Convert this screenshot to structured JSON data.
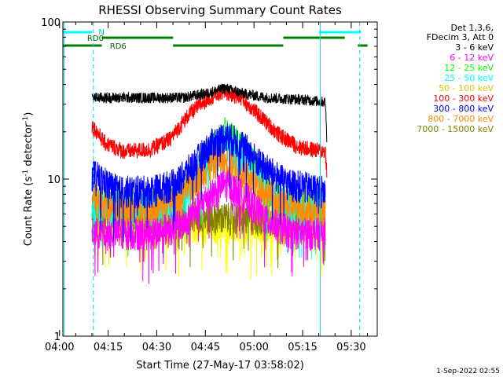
{
  "chart_data": {
    "type": "line",
    "title": "RHESSI Observing Summary Count Rates",
    "xlabel": "Start Time (27-May-17 03:58:02)",
    "ylabel": "Count Rate (s⁻¹ detector⁻¹)",
    "ylabel_parts": {
      "main": "Count Rate (s",
      "sup1": "-1",
      "mid": " detector",
      "sup2": "-1",
      "end": ")"
    },
    "yscale": "log",
    "xlim_minutes": [
      3.0,
      100.0
    ],
    "ylim": [
      1,
      100
    ],
    "x_ticks": [
      {
        "minute": 1.97,
        "label": "04:00"
      },
      {
        "minute": 16.97,
        "label": "04:15"
      },
      {
        "minute": 31.97,
        "label": "04:30"
      },
      {
        "minute": 46.97,
        "label": "04:45"
      },
      {
        "minute": 61.97,
        "label": "05:00"
      },
      {
        "minute": 76.97,
        "label": "05:15"
      },
      {
        "minute": 91.97,
        "label": "05:30"
      }
    ],
    "y_ticks": [
      {
        "value": 1,
        "label": "1"
      },
      {
        "value": 10,
        "label": "10"
      },
      {
        "value": 100,
        "label": "100"
      }
    ],
    "legend_header": [
      "Det 1,3,6,",
      "FDecim 3, Att 0"
    ],
    "series": [
      {
        "name": "3 - 6 keV",
        "color": "#000000",
        "points": [
          [
            12,
            33
          ],
          [
            40,
            33
          ],
          [
            47,
            35
          ],
          [
            53,
            38
          ],
          [
            59,
            35
          ],
          [
            66,
            33
          ],
          [
            78,
            32
          ],
          [
            84,
            31
          ],
          [
            84.5,
            17
          ]
        ]
      },
      {
        "name": "6 - 12 keV",
        "color": "#ff00ff",
        "points": [
          [
            12,
            4.6
          ],
          [
            30,
            4.6
          ],
          [
            40,
            5.2
          ],
          [
            47,
            7.5
          ],
          [
            53,
            9.5
          ],
          [
            59,
            8
          ],
          [
            66,
            5.5
          ],
          [
            74,
            4.6
          ],
          [
            84,
            4.6
          ]
        ]
      },
      {
        "name": "12 - 25 keV",
        "color": "#00ff00",
        "points": [
          [
            12,
            7
          ],
          [
            30,
            7
          ],
          [
            40,
            8
          ],
          [
            47,
            14
          ],
          [
            53,
            20
          ],
          [
            59,
            16
          ],
          [
            66,
            9
          ],
          [
            74,
            7
          ],
          [
            84,
            7
          ]
        ]
      },
      {
        "name": "25 - 50 keV",
        "color": "#00ffff",
        "points": [
          [
            12,
            6.5
          ],
          [
            30,
            6.5
          ],
          [
            40,
            7.5
          ],
          [
            47,
            12
          ],
          [
            53,
            17
          ],
          [
            59,
            14
          ],
          [
            66,
            8
          ],
          [
            74,
            6.5
          ],
          [
            84,
            6.5
          ]
        ]
      },
      {
        "name": "50 - 100 keV",
        "color": "#ffff00",
        "points": [
          [
            12,
            5
          ],
          [
            84,
            5
          ]
        ]
      },
      {
        "name": "100 - 300 keV",
        "color": "#ff0000",
        "points": [
          [
            12,
            22
          ],
          [
            16,
            17
          ],
          [
            22,
            15
          ],
          [
            30,
            15.5
          ],
          [
            36,
            18
          ],
          [
            42,
            26
          ],
          [
            48,
            33
          ],
          [
            53,
            36
          ],
          [
            58,
            33
          ],
          [
            64,
            25
          ],
          [
            70,
            19
          ],
          [
            76,
            16
          ],
          [
            84,
            15
          ],
          [
            84.5,
            11
          ]
        ]
      },
      {
        "name": "300 - 800 keV",
        "color": "#0000ff",
        "points": [
          [
            12,
            11
          ],
          [
            20,
            8.5
          ],
          [
            30,
            8.5
          ],
          [
            38,
            9.5
          ],
          [
            44,
            13
          ],
          [
            49,
            17
          ],
          [
            53,
            19
          ],
          [
            58,
            17
          ],
          [
            64,
            12.5
          ],
          [
            72,
            9.5
          ],
          [
            84,
            8.5
          ]
        ]
      },
      {
        "name": "800 - 7000 keV",
        "color": "#ff8c00",
        "points": [
          [
            12,
            8
          ],
          [
            20,
            6.5
          ],
          [
            32,
            6.5
          ],
          [
            38,
            7.5
          ],
          [
            45,
            10.5
          ],
          [
            51,
            13.5
          ],
          [
            55,
            12.5
          ],
          [
            62,
            9.5
          ],
          [
            70,
            7
          ],
          [
            84,
            6.3
          ]
        ]
      },
      {
        "name": "7000 - 15000 keV",
        "color": "#808000",
        "points": [
          [
            12,
            6
          ],
          [
            84,
            5.5
          ]
        ]
      }
    ],
    "status_bars": [
      {
        "label": "N",
        "color": "#00ffff",
        "level": 1,
        "segments": [
          [
            3,
            12
          ],
          [
            82,
            95
          ]
        ]
      },
      {
        "label": "RD0",
        "color": "#008000",
        "level": 2,
        "segments": [
          [
            15,
            37
          ],
          [
            71,
            90
          ]
        ]
      },
      {
        "label": "RD6",
        "color": "#008000",
        "level": 3,
        "segments": [
          [
            3,
            15
          ],
          [
            37,
            71
          ],
          [
            94,
            97
          ]
        ]
      }
    ],
    "vertical_markers": [
      {
        "minute": 3.4,
        "style": "solid"
      },
      {
        "minute": 12.4,
        "style": "dashed"
      },
      {
        "minute": 82.4,
        "style": "solid"
      },
      {
        "minute": 94.6,
        "style": "dashed"
      }
    ],
    "grid": false,
    "legend_position": "right"
  },
  "footer": {
    "timestamp": "1-Sep-2022 02:55"
  }
}
